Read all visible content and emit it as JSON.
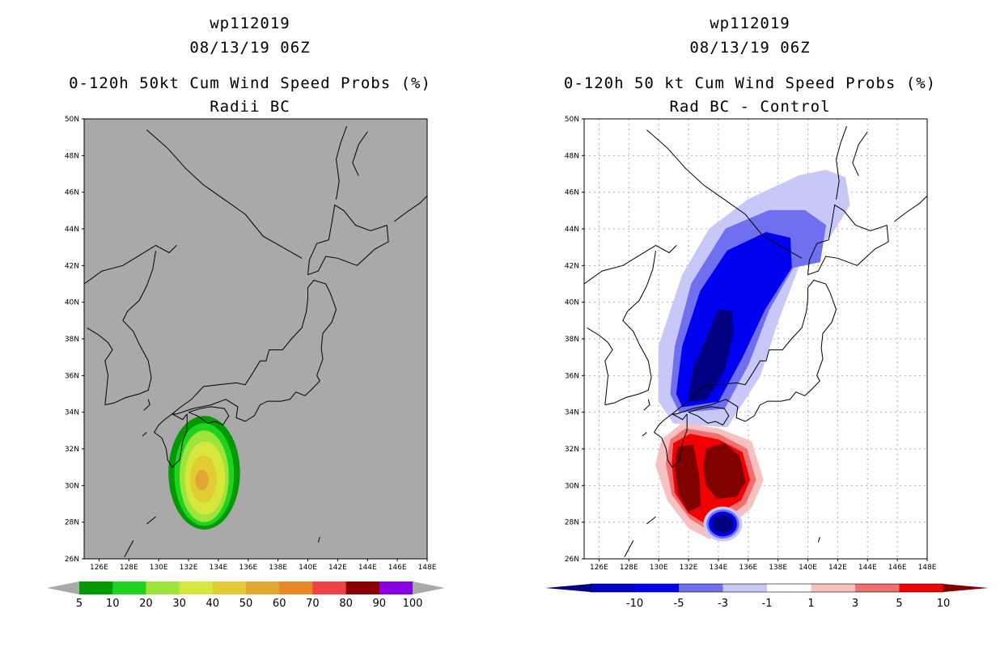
{
  "chart_data": [
    {
      "type": "heatmap",
      "title_lines": [
        "wp112019",
        "08/13/19 06Z"
      ],
      "subtitle": "0-120h 50kt Cum Wind Speed Probs (%)",
      "subtitle2": "Radii BC",
      "lon_ticks": [
        "126E",
        "128E",
        "130E",
        "132E",
        "134E",
        "136E",
        "138E",
        "140E",
        "142E",
        "144E",
        "146E",
        "148E"
      ],
      "lat_ticks": [
        "26N",
        "28N",
        "30N",
        "32N",
        "34N",
        "36N",
        "38N",
        "40N",
        "42N",
        "44N",
        "46N",
        "48N",
        "50N"
      ],
      "lon_range": [
        125,
        148
      ],
      "lat_range": [
        26,
        50
      ],
      "background": "#a9a9a9",
      "grid": false,
      "colorbar": {
        "labels": [
          "5",
          "10",
          "20",
          "30",
          "40",
          "50",
          "60",
          "70",
          "80",
          "90",
          "100"
        ],
        "colors": [
          "#009a00",
          "#20d320",
          "#9ee43a",
          "#d6e63c",
          "#e2cc33",
          "#dfa730",
          "#e88725",
          "#f04048",
          "#8a0000",
          "#8a00e6"
        ],
        "end_color": "#a9a9a9"
      },
      "series": [
        {
          "name": "5-10%",
          "color": "#009a00",
          "level": 5,
          "cx": 133.05,
          "cy": 30.7,
          "rx": 2.4,
          "ry": 3.1
        },
        {
          "name": "10-20%",
          "color": "#20d320",
          "level": 10,
          "cx": 133.05,
          "cy": 30.6,
          "rx": 2.0,
          "ry": 2.8
        },
        {
          "name": "20-30%",
          "color": "#9ee43a",
          "level": 20,
          "cx": 133.05,
          "cy": 30.5,
          "rx": 1.65,
          "ry": 2.5
        },
        {
          "name": "30-40%",
          "color": "#d6e63c",
          "level": 30,
          "cx": 133.1,
          "cy": 30.4,
          "rx": 1.35,
          "ry": 2.0
        },
        {
          "name": "40-50%",
          "color": "#e2cc33",
          "level": 40,
          "cx": 133.0,
          "cy": 30.35,
          "rx": 0.9,
          "ry": 1.3
        },
        {
          "name": "50-60%",
          "color": "#dfa730",
          "level": 50,
          "cx": 132.9,
          "cy": 30.3,
          "rx": 0.45,
          "ry": 0.55
        }
      ]
    },
    {
      "type": "heatmap",
      "title_lines": [
        "wp112019",
        "08/13/19 06Z"
      ],
      "subtitle": "0-120h 50 kt Cum Wind Speed Probs (%)",
      "subtitle2": "Rad BC - Control",
      "lon_ticks": [
        "126E",
        "128E",
        "130E",
        "132E",
        "134E",
        "136E",
        "138E",
        "140E",
        "142E",
        "144E",
        "146E",
        "148E"
      ],
      "lat_ticks": [
        "26N",
        "28N",
        "30N",
        "32N",
        "34N",
        "36N",
        "38N",
        "40N",
        "42N",
        "44N",
        "46N",
        "48N",
        "50N"
      ],
      "lon_range": [
        125,
        148
      ],
      "lat_range": [
        26,
        50
      ],
      "background": "#ffffff",
      "grid": true,
      "colorbar": {
        "labels": [
          "-10",
          "-5",
          "-3",
          "-1",
          "1",
          "3",
          "5",
          "10"
        ],
        "colors": [
          "#0000c8",
          "#0000f0",
          "#6f6ff0",
          "#c8c8f8",
          "#ffffff",
          "#f8c0c0",
          "#f07070",
          "#f00000"
        ],
        "left_color": "#000080",
        "right_color": "#800000"
      },
      "series": [
        {
          "name": "-1 to -3",
          "color": "#c8c8f8",
          "level": -1,
          "shape": "poly",
          "pts": [
            [
              131.0,
              33.4
            ],
            [
              134.6,
              33.2
            ],
            [
              136.8,
              36.0
            ],
            [
              138.0,
              39.0
            ],
            [
              139.6,
              42.4
            ],
            [
              141.5,
              43.6
            ],
            [
              142.8,
              45.3
            ],
            [
              142.5,
              46.8
            ],
            [
              141.2,
              47.2
            ],
            [
              139.4,
              46.9
            ],
            [
              136.0,
              45.6
            ],
            [
              133.4,
              44.0
            ],
            [
              131.6,
              41.5
            ],
            [
              130.0,
              37.6
            ],
            [
              130.0,
              34.6
            ]
          ]
        },
        {
          "name": "-3 to -5",
          "color": "#6f6ff0",
          "level": -3,
          "shape": "poly",
          "pts": [
            [
              131.4,
              34.0
            ],
            [
              134.4,
              34.2
            ],
            [
              136.0,
              36.6
            ],
            [
              137.4,
              39.6
            ],
            [
              139.0,
              41.9
            ],
            [
              140.8,
              42.2
            ],
            [
              141.2,
              44.2
            ],
            [
              139.8,
              45.0
            ],
            [
              137.4,
              45.0
            ],
            [
              134.5,
              44.0
            ],
            [
              132.2,
              41.0
            ],
            [
              131.1,
              37.6
            ],
            [
              130.8,
              35.0
            ]
          ]
        },
        {
          "name": "-5 to -10",
          "color": "#0000f0",
          "level": -5,
          "shape": "poly",
          "pts": [
            [
              131.6,
              34.3
            ],
            [
              134.0,
              34.6
            ],
            [
              135.6,
              37.0
            ],
            [
              137.1,
              39.6
            ],
            [
              138.9,
              41.9
            ],
            [
              138.8,
              43.5
            ],
            [
              137.2,
              43.8
            ],
            [
              134.6,
              42.8
            ],
            [
              132.8,
              40.6
            ],
            [
              131.6,
              37.6
            ],
            [
              131.2,
              35.0
            ]
          ]
        },
        {
          "name": "<= -10",
          "color": "#000080",
          "level": -10,
          "shape": "poly",
          "pts": [
            [
              132.0,
              34.6
            ],
            [
              133.2,
              34.7
            ],
            [
              134.4,
              36.3
            ],
            [
              135.0,
              38.4
            ],
            [
              134.9,
              39.5
            ],
            [
              134.0,
              39.6
            ],
            [
              133.2,
              38.0
            ],
            [
              132.3,
              36.3
            ]
          ]
        },
        {
          "name": "1 to 3",
          "color": "#f8c0c0",
          "level": 1,
          "shape": "poly",
          "pts": [
            [
              130.2,
              32.5
            ],
            [
              131.6,
              33.4
            ],
            [
              134.0,
              33.1
            ],
            [
              136.2,
              32.4
            ],
            [
              137.0,
              30.3
            ],
            [
              136.2,
              28.8
            ],
            [
              134.8,
              27.8
            ],
            [
              133.4,
              27.1
            ],
            [
              132.0,
              27.7
            ],
            [
              130.6,
              29.2
            ],
            [
              129.8,
              31.1
            ]
          ]
        },
        {
          "name": "3 to 5",
          "color": "#f07070",
          "level": 3,
          "shape": "poly",
          "pts": [
            [
              130.8,
              32.5
            ],
            [
              131.8,
              33.1
            ],
            [
              134.0,
              32.8
            ],
            [
              135.9,
              32.0
            ],
            [
              136.5,
              30.3
            ],
            [
              135.8,
              29.0
            ],
            [
              134.5,
              28.2
            ],
            [
              133.3,
              27.6
            ],
            [
              132.1,
              28.2
            ],
            [
              130.9,
              29.5
            ],
            [
              130.5,
              31.2
            ]
          ]
        },
        {
          "name": "5 to 10",
          "color": "#f00000",
          "level": 5,
          "shape": "poly",
          "pts": [
            [
              131.0,
              32.3
            ],
            [
              132.1,
              32.8
            ],
            [
              134.0,
              32.5
            ],
            [
              135.6,
              31.8
            ],
            [
              136.1,
              30.3
            ],
            [
              135.5,
              29.2
            ],
            [
              134.2,
              28.6
            ],
            [
              133.0,
              28.0
            ],
            [
              132.0,
              28.5
            ],
            [
              131.1,
              29.6
            ],
            [
              130.9,
              31.2
            ]
          ]
        },
        {
          "name": ">= 10 (west)",
          "color": "#800000",
          "level": 10,
          "shape": "poly",
          "pts": [
            [
              131.3,
              32.1
            ],
            [
              132.3,
              32.2
            ],
            [
              132.7,
              30.5
            ],
            [
              132.8,
              28.9
            ],
            [
              132.0,
              28.6
            ],
            [
              131.3,
              29.6
            ],
            [
              131.1,
              31.0
            ]
          ]
        },
        {
          "name": ">= 10 (east)",
          "color": "#800000",
          "level": 10,
          "shape": "poly",
          "pts": [
            [
              133.2,
              32.0
            ],
            [
              134.4,
              32.3
            ],
            [
              135.4,
              31.6
            ],
            [
              135.8,
              30.2
            ],
            [
              135.2,
              29.4
            ],
            [
              133.9,
              29.3
            ],
            [
              133.2,
              30.0
            ],
            [
              133.0,
              31.0
            ]
          ]
        },
        {
          "name": "-1 to -3 (south)",
          "color": "#c8c8f8",
          "level": -1,
          "shape": "ellipse",
          "cx": 134.3,
          "cy": 27.9,
          "rx": 1.3,
          "ry": 0.95
        },
        {
          "name": "-3 to -5 (south)",
          "color": "#6f6ff0",
          "level": -3,
          "shape": "ellipse",
          "cx": 134.3,
          "cy": 27.9,
          "rx": 1.1,
          "ry": 0.8
        },
        {
          "name": "-5 to -10 (south)",
          "color": "#0000f0",
          "level": -5,
          "shape": "ellipse",
          "cx": 134.3,
          "cy": 27.9,
          "rx": 0.95,
          "ry": 0.68
        },
        {
          "name": "<= -10 (south)",
          "color": "#000080",
          "level": -10,
          "shape": "ellipse",
          "cx": 134.3,
          "cy": 27.9,
          "rx": 0.72,
          "ry": 0.5
        }
      ]
    }
  ]
}
